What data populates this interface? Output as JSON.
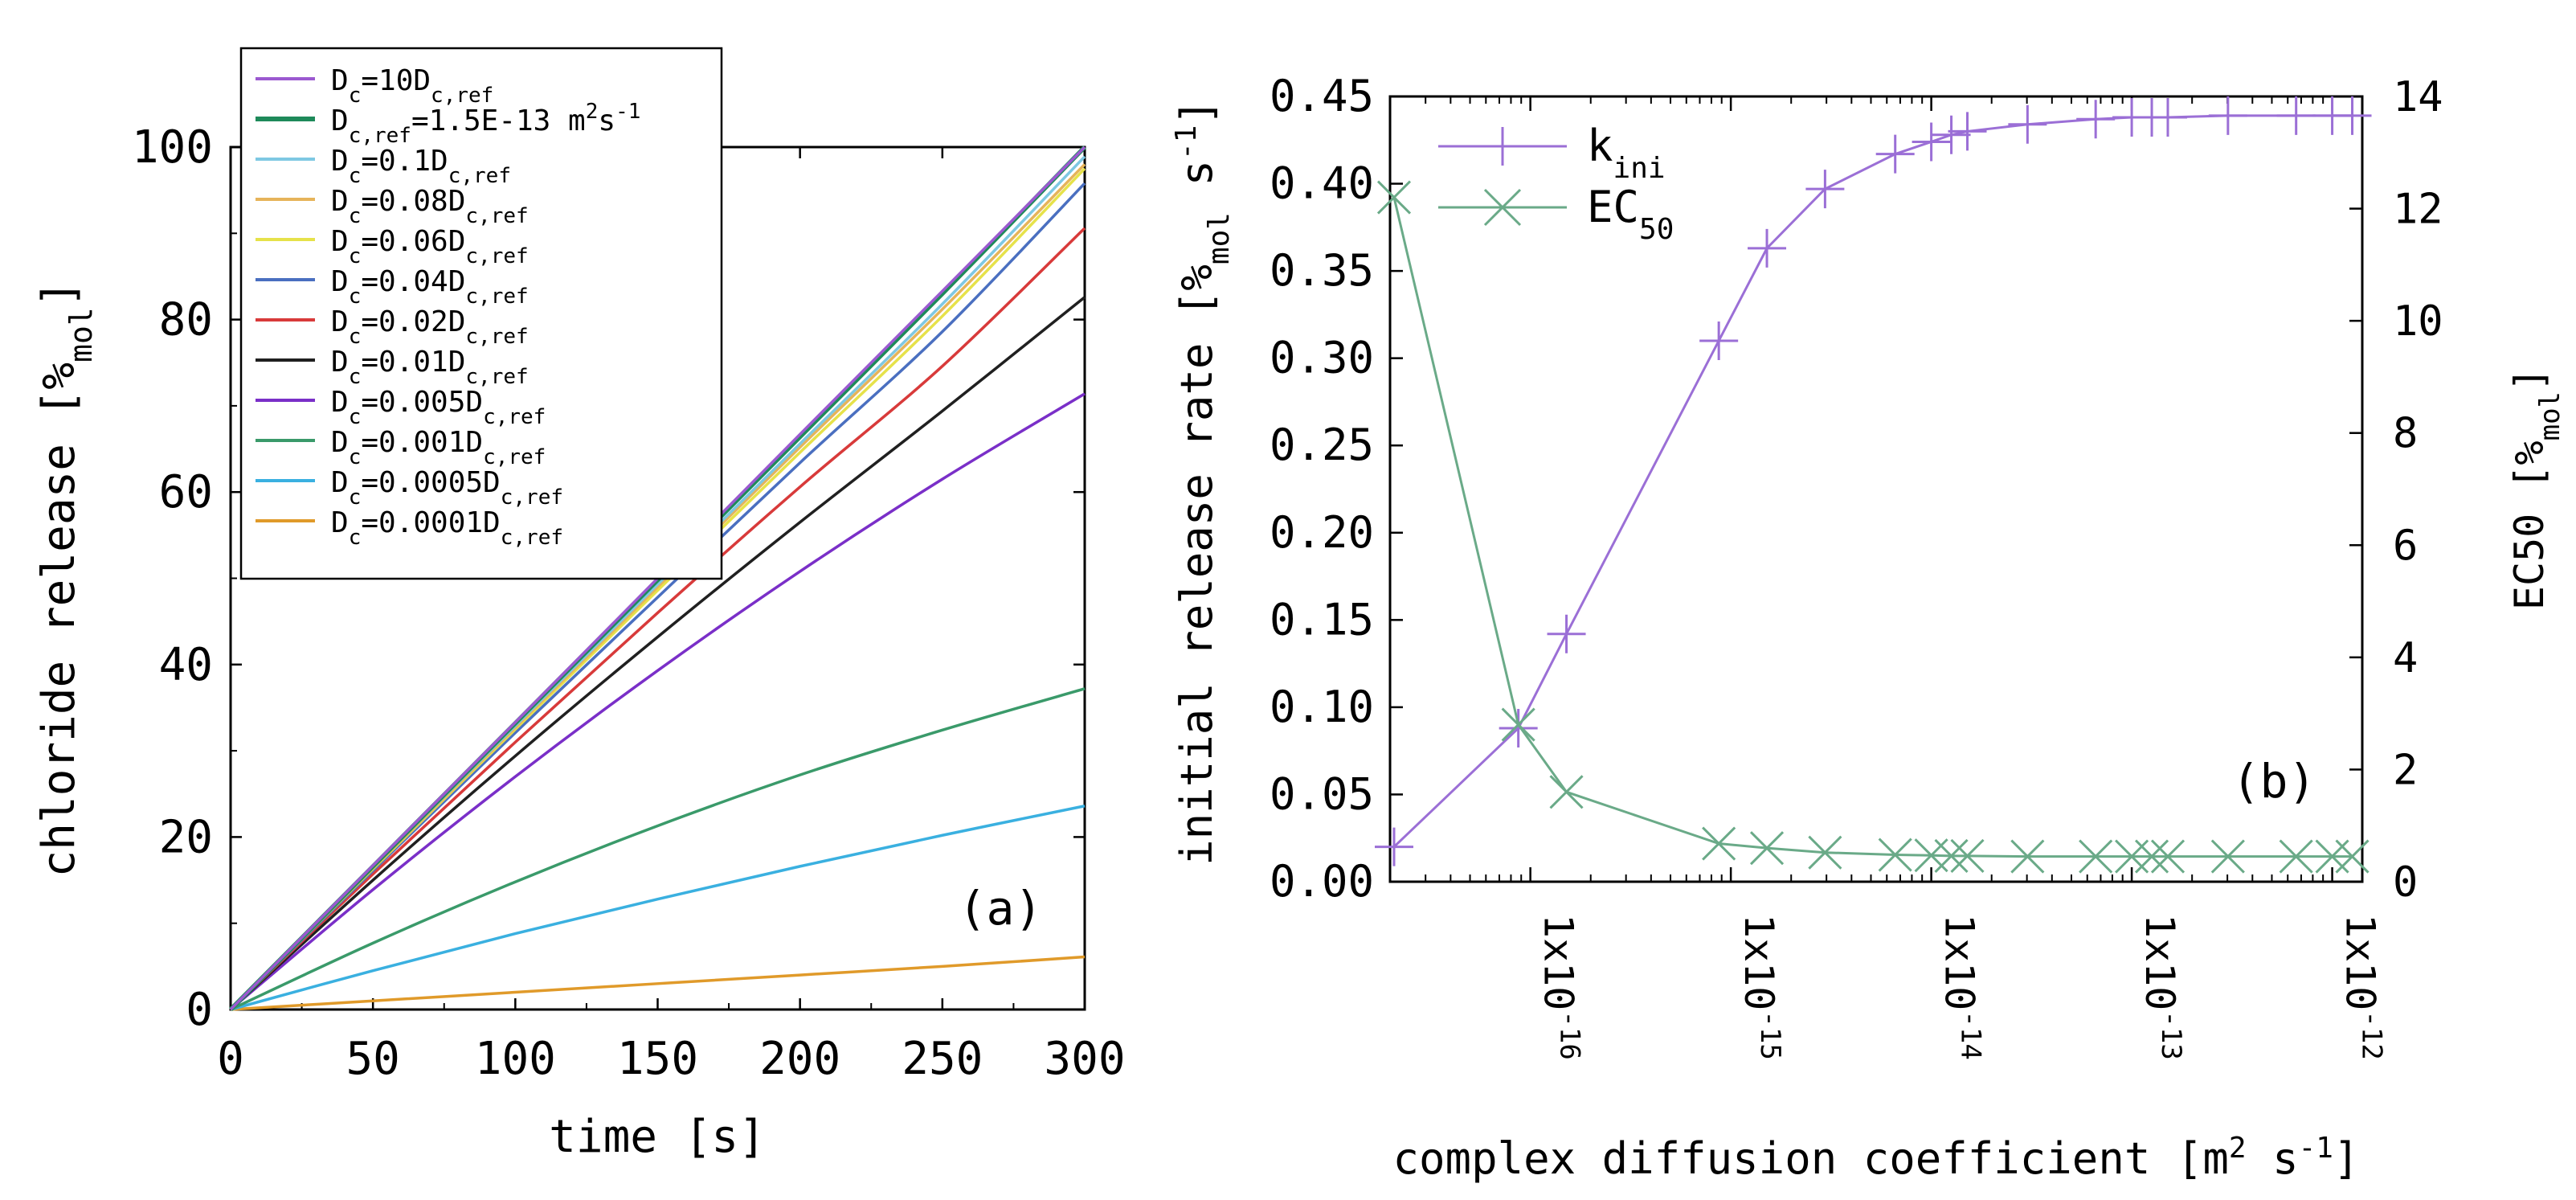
{
  "chart_data": [
    {
      "id": "a",
      "type": "line",
      "panel_label": "(a)",
      "xlabel": "time [s]",
      "ylabel": {
        "main": "chloride release [%",
        "sub": "mol",
        "end": "]"
      },
      "xlim": [
        0,
        300
      ],
      "ylim": [
        0,
        100
      ],
      "xticks": [
        "0",
        "50",
        "100",
        "150",
        "200",
        "250",
        "300"
      ],
      "yticks": [
        "0",
        "20",
        "40",
        "60",
        "80",
        "100"
      ],
      "x": [
        0,
        50,
        100,
        150,
        200,
        250,
        300
      ],
      "legend_position": "top-left",
      "series": [
        {
          "base": "D",
          "sub": "c",
          "rest": "=10D",
          "sub2": "c,ref",
          "tail": "",
          "color": "#9b59d0",
          "values": [
            0,
            16.7,
            33.3,
            50,
            66.7,
            83.3,
            100
          ]
        },
        {
          "base": "D",
          "sub": "c,ref",
          "rest": "=1.5E-13 m",
          "sup": "2",
          "rest2": "s",
          "sup2": "-1",
          "color": "#1e8a5a",
          "values": [
            0,
            16.6,
            33.2,
            49.8,
            66.4,
            83,
            100
          ]
        },
        {
          "base": "D",
          "sub": "c",
          "rest": "=0.1D",
          "sub2": "c,ref",
          "tail": "",
          "color": "#7ec8e3",
          "values": [
            0,
            16.5,
            32.9,
            49.3,
            65.6,
            81.8,
            98.9
          ]
        },
        {
          "base": "D",
          "sub": "c",
          "rest": "=0.08D",
          "sub2": "c,ref",
          "tail": "",
          "color": "#e6b45a",
          "values": [
            0,
            16.4,
            32.7,
            49,
            65.2,
            81.2,
            98
          ]
        },
        {
          "base": "D",
          "sub": "c",
          "rest": "=0.06D",
          "sub2": "c,ref",
          "tail": "",
          "color": "#e6e24a",
          "values": [
            0,
            16.3,
            32.5,
            48.6,
            64.6,
            80.4,
            97.5
          ]
        },
        {
          "base": "D",
          "sub": "c",
          "rest": "=0.04D",
          "sub2": "c,ref",
          "tail": "",
          "color": "#4a6fc0",
          "values": [
            0,
            16.1,
            32.1,
            47.8,
            63.4,
            78.6,
            95.8
          ]
        },
        {
          "base": "D",
          "sub": "c",
          "rest": "=0.02D",
          "sub2": "c,ref",
          "tail": "",
          "color": "#d83a3a",
          "values": [
            0,
            15.7,
            31,
            46,
            60.6,
            74.6,
            90.6
          ]
        },
        {
          "base": "D",
          "sub": "c",
          "rest": "=0.01D",
          "sub2": "c,ref",
          "tail": "",
          "color": "#202020",
          "values": [
            0,
            15,
            29.4,
            43.2,
            56.5,
            69.4,
            82.6
          ]
        },
        {
          "base": "D",
          "sub": "c",
          "rest": "=0.005D",
          "sub2": "c,ref",
          "tail": "",
          "color": "#7a2fc8",
          "values": [
            0,
            13.9,
            27,
            39.3,
            50.8,
            61.5,
            71.4
          ]
        },
        {
          "base": "D",
          "sub": "c",
          "rest": "=0.001D",
          "sub2": "c,ref",
          "tail": "",
          "color": "#3a9a6a",
          "values": [
            0,
            7.7,
            14.8,
            21.3,
            27.2,
            32.4,
            37.2
          ]
        },
        {
          "base": "D",
          "sub": "c",
          "rest": "=0.0005D",
          "sub2": "c,ref",
          "tail": "",
          "color": "#3ab0e0",
          "values": [
            0,
            4.5,
            8.8,
            12.8,
            16.6,
            20.2,
            23.6
          ]
        },
        {
          "base": "D",
          "sub": "c",
          "rest": "=0.0001D",
          "sub2": "c,ref",
          "tail": "",
          "color": "#e09a2a",
          "values": [
            0,
            1,
            2,
            3,
            4,
            5,
            6.1
          ]
        }
      ]
    },
    {
      "id": "b",
      "type": "line",
      "panel_label": "(b)",
      "xlabel": "complex diffusion coefficient [m",
      "xlabel_sup1": "2",
      "xlabel_mid": " s",
      "xlabel_sup2": "-1",
      "xlabel_end": "]",
      "ylabel_left": {
        "main": "initial release rate [%",
        "sub": "mol",
        "mid": " s",
        "sup": "-1",
        "end": "]"
      },
      "ylabel_right": {
        "main": "EC50 [%",
        "sub": "mol",
        "end": "]"
      },
      "x_scale": "log",
      "xlim_log10": [
        -16.7,
        -11.85
      ],
      "ylim_left": [
        0,
        0.45
      ],
      "ylim_right": [
        0,
        14
      ],
      "xticks": [
        {
          "base": "1x10",
          "exp": "-16",
          "log": -16
        },
        {
          "base": "1x10",
          "exp": "-15",
          "log": -15
        },
        {
          "base": "1x10",
          "exp": "-14",
          "log": -14
        },
        {
          "base": "1x10",
          "exp": "-13",
          "log": -13
        },
        {
          "base": "1x10",
          "exp": "-12",
          "log": -12
        }
      ],
      "yticks_left": [
        "0.00",
        "0.05",
        "0.10",
        "0.15",
        "0.20",
        "0.25",
        "0.30",
        "0.35",
        "0.40",
        "0.45"
      ],
      "yticks_right": [
        "0",
        "2",
        "4",
        "6",
        "8",
        "10",
        "12",
        "14"
      ],
      "legend_position": "top-left",
      "series": [
        {
          "name": "k",
          "name_sub": "ini",
          "axis": "left",
          "marker": "plus",
          "color": "#9b6fd6",
          "x_log10": [
            -16.68,
            -16.06,
            -15.82,
            -15.06,
            -14.82,
            -14.53,
            -14.18,
            -14.0,
            -13.9,
            -13.82,
            -13.52,
            -13.18,
            -13.0,
            -12.9,
            -12.82,
            -12.52,
            -12.18,
            -12.0,
            -11.9
          ],
          "values": [
            0.02,
            0.088,
            0.142,
            0.31,
            0.363,
            0.397,
            0.417,
            0.424,
            0.428,
            0.43,
            0.434,
            0.437,
            0.438,
            0.438,
            0.438,
            0.439,
            0.439,
            0.439,
            0.439
          ]
        },
        {
          "name": "EC",
          "name_sub": "50",
          "axis": "right",
          "marker": "x",
          "color": "#6aaa88",
          "x_log10": [
            -16.68,
            -16.06,
            -15.82,
            -15.06,
            -14.82,
            -14.53,
            -14.18,
            -14.0,
            -13.9,
            -13.82,
            -13.52,
            -13.18,
            -13.0,
            -12.9,
            -12.82,
            -12.52,
            -12.18,
            -12.0,
            -11.9
          ],
          "values": [
            12.2,
            2.8,
            1.6,
            0.68,
            0.6,
            0.52,
            0.48,
            0.47,
            0.46,
            0.46,
            0.45,
            0.45,
            0.45,
            0.45,
            0.45,
            0.45,
            0.45,
            0.45,
            0.45
          ]
        }
      ]
    }
  ]
}
